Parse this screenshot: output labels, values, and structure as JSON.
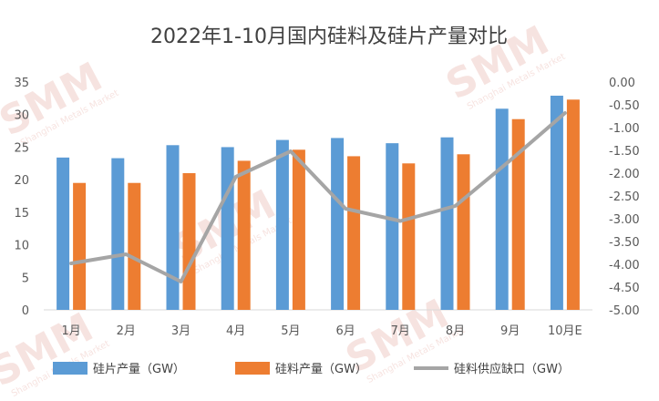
{
  "watermark": {
    "text": "SMM",
    "sub": "Shanghai Metals Market"
  },
  "chart_data": {
    "type": "bar",
    "title": "2022年1-10月国内硅料及硅片产量对比",
    "categories": [
      "1月",
      "2月",
      "3月",
      "4月",
      "5月",
      "6月",
      "7月",
      "8月",
      "9月",
      "10月E"
    ],
    "series": [
      {
        "name": "硅片产量（GW）",
        "type": "bar",
        "axis": "left",
        "color": "#5B9BD5",
        "values": [
          23.4,
          23.3,
          25.3,
          25.0,
          26.1,
          26.4,
          25.6,
          26.5,
          30.9,
          32.9
        ]
      },
      {
        "name": "硅料产量（GW）",
        "type": "bar",
        "axis": "left",
        "color": "#ED7D31",
        "values": [
          19.5,
          19.5,
          21.0,
          22.9,
          24.6,
          23.6,
          22.5,
          23.9,
          29.3,
          32.3
        ]
      },
      {
        "name": "硅料供应缺口（GW）",
        "type": "line",
        "axis": "right",
        "color": "#A5A5A5",
        "values": [
          -3.98,
          -3.78,
          -4.38,
          -2.08,
          -1.52,
          -2.78,
          -3.05,
          -2.72,
          -1.72,
          -0.68
        ]
      }
    ],
    "left_axis": {
      "min": 0,
      "max": 35,
      "step": 5,
      "tick_labels": [
        "0",
        "5",
        "10",
        "15",
        "20",
        "25",
        "30",
        "35"
      ]
    },
    "right_axis": {
      "min": -5,
      "max": 0,
      "step": 0.5,
      "tick_labels": [
        "0.00",
        "-0.50",
        "-1.00",
        "-1.50",
        "-2.00",
        "-2.50",
        "-3.00",
        "-3.50",
        "-4.00",
        "-4.50",
        "-5.00"
      ]
    },
    "grid": false,
    "legend_position": "bottom"
  }
}
